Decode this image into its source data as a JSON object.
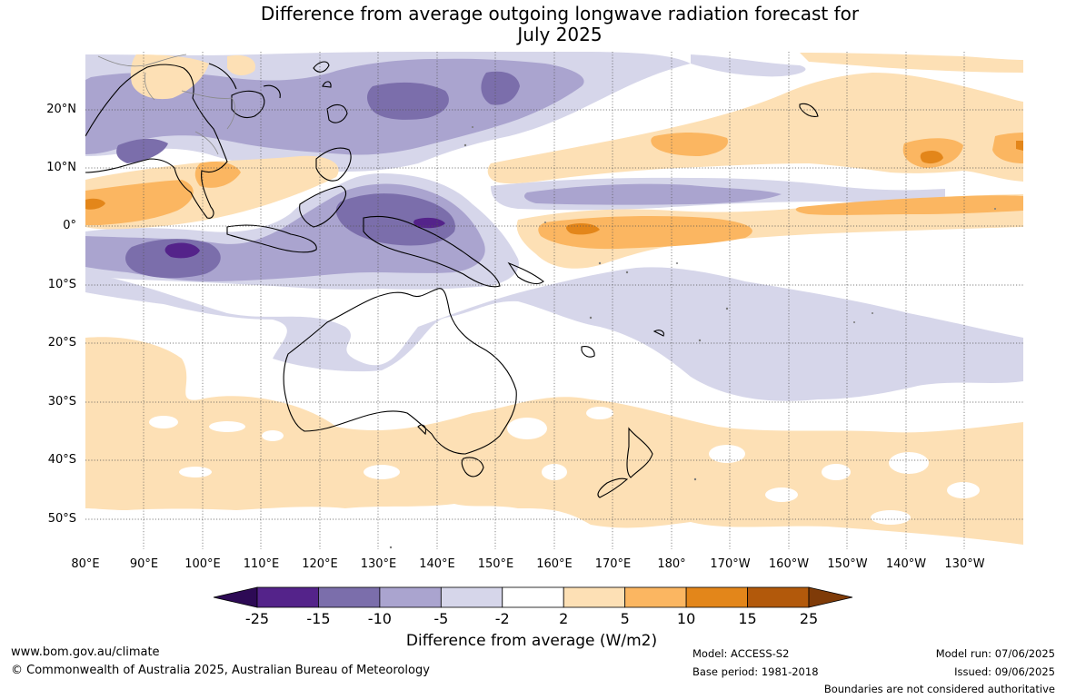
{
  "title_line1": "Difference from average outgoing longwave radiation forecast for",
  "title_line2": "July 2025",
  "lat_labels": [
    "20°N",
    "10°N",
    "0°",
    "10°S",
    "20°S",
    "30°S",
    "40°S",
    "50°S"
  ],
  "lon_labels": [
    "80°E",
    "90°E",
    "100°E",
    "110°E",
    "120°E",
    "130°E",
    "140°E",
    "150°E",
    "160°E",
    "170°E",
    "180°",
    "170°W",
    "160°W",
    "150°W",
    "140°W",
    "130°W"
  ],
  "colorbar": {
    "ticks": [
      "-25",
      "-15",
      "-10",
      "-5",
      "-2",
      "2",
      "5",
      "10",
      "15",
      "25"
    ],
    "colors": [
      "#2d0a55",
      "#54238a",
      "#7b6eab",
      "#aaa4cf",
      "#d6d6ea",
      "#ffffff",
      "#fde0b5",
      "#fbb661",
      "#e3861a",
      "#b2590b",
      "#7f3b08"
    ],
    "label": "Difference from average (W/m2)"
  },
  "footer": {
    "website": "www.bom.gov.au/climate",
    "copyright": "© Commonwealth of Australia 2025, Australian Bureau of Meteorology",
    "model": "Model: ACCESS-S2",
    "base_period": "Base period: 1981-2018",
    "model_run": "Model run: 07/06/2025",
    "issued": "Issued: 09/06/2025",
    "disclaimer": "Boundaries are not considered authoritative"
  }
}
